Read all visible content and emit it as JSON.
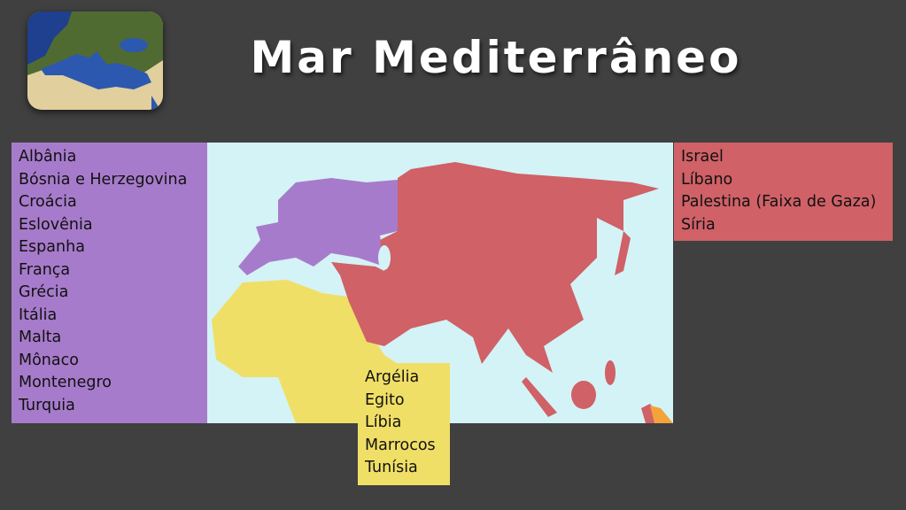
{
  "title": "Mar Mediterrâneo",
  "colors": {
    "background": "#404040",
    "europe": "#a77bcb",
    "asia": "#cf6167",
    "africa": "#f0df66",
    "ocean": "#d4f3f6",
    "oceania": "#f2a43a"
  },
  "europe_list": [
    "Albânia",
    "Bósnia e Herzegovina",
    "Croácia",
    "Eslovênia",
    "Espanha",
    "França",
    "Grécia",
    "Itália",
    "Malta",
    "Mônaco",
    "Montenegro",
    "Turquia"
  ],
  "asia_list": [
    "Israel",
    "Líbano",
    "Palestina (Faixa de Gaza)",
    "Síria"
  ],
  "africa_list": [
    "Argélia",
    "Egito",
    "Líbia",
    "Marrocos",
    "Tunísia"
  ]
}
